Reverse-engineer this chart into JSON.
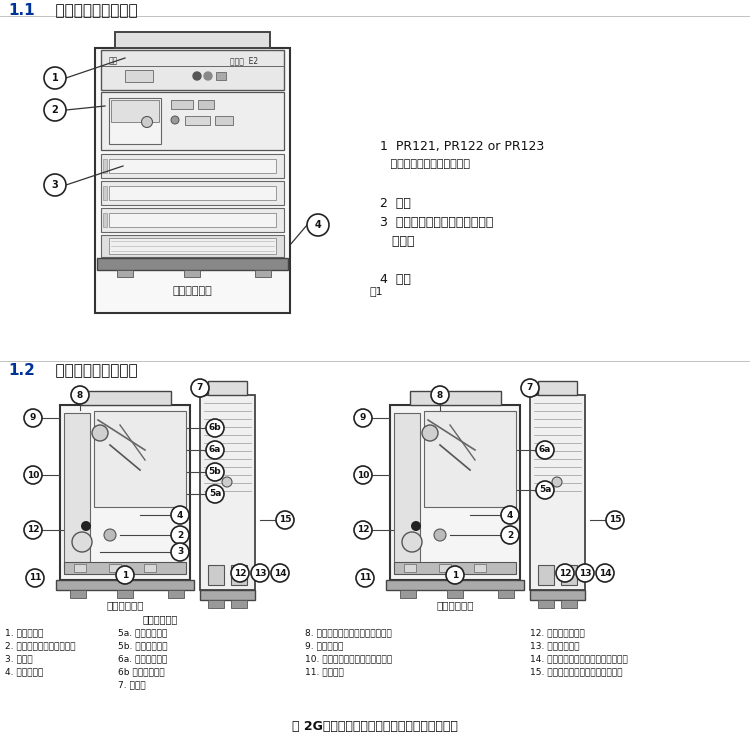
{
  "title1_num": "1.1",
  "title1_text": "  断路器的外部正面图",
  "title2_num": "1.2",
  "title2_text": "  抽出部分的结构特征",
  "bg_color": "#ffffff",
  "header_bg": "#ffffff",
  "header_num_color": "#003399",
  "text_color": "#000000",
  "labels_top_right": [
    [
      "1  PR121, PR122 or PR123",
      9.5,
      false
    ],
    [
      "   基于电子微处理器的脱扣器",
      8,
      false
    ],
    [
      "",
      8,
      false
    ],
    [
      "2  面标",
      9,
      false
    ],
    [
      "3  操作机构的开关控制部件和脱",
      9,
      false
    ],
    [
      "   扣信号",
      9,
      false
    ],
    [
      "",
      8,
      false
    ],
    [
      "4  铭牌",
      9,
      false
    ]
  ],
  "caption1": "固定式断路器",
  "caption2": "图1",
  "bottom_col1": [
    "1. 钢板支架件",
    "2. 保护脱扣器的电流互感器",
    "3. 端子盒",
    "4. 水平后端子"
  ],
  "bottom_col2_title": "选择型断路器",
  "bottom_col2": [
    "5a. 静触头主触点",
    "5b. 静触头辅触点",
    "6a. 动触头主触点",
    "6b 动触头辅触点"
  ],
  "bottom_col2b": "7. 灭弧罩",
  "bottom_col3": [
    "8. 固定式端子盒－抽出式滑动触点",
    "9. 保护脱扣器",
    "10. 断路器的闭合与分断操作机构",
    "11. 起合弹簧"
  ],
  "bottom_col4": [
    "12. 弹簧储能电动机",
    "13. 手动储能手柄",
    "14. 抽出装置（只对于抽出式断路器）",
    "15. 脱扣器（合闸、分断、欠电压）"
  ],
  "bottom_caption": "图 2G注：附件配置根据订货情况可能有所不同",
  "label_left_breaker": "选择型断路器",
  "label_right_breaker": "固定式断路器",
  "line_color": "#444444",
  "fill_light": "#f0f0f0",
  "fill_mid": "#d8d8d8",
  "fill_dark": "#aaaaaa"
}
